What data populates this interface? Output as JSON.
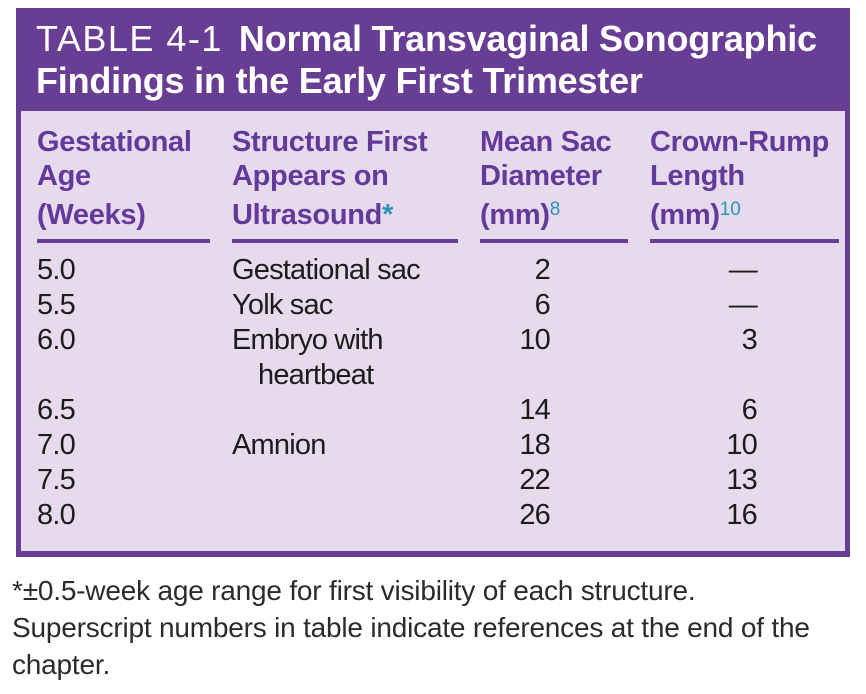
{
  "theme": {
    "header_bg": "#683d94",
    "panel_bg": "#e6daec",
    "heading_text": "#63399a",
    "title_text": "#ffffff",
    "superscript": "#2a93b8",
    "body_text": "#1c1c1c",
    "border": "#683d94",
    "page_bg": "#ffffff",
    "footnote_text": "#2b2b2b"
  },
  "title": {
    "label": "TABLE 4-1",
    "text": "Normal Transvaginal Sonographic Findings in the Early First Trimester"
  },
  "table": {
    "columns": [
      {
        "line1": "Gestational",
        "line2": "Age",
        "line3": "(Weeks)",
        "star": "",
        "sup": ""
      },
      {
        "line1": "Structure First",
        "line2": "Appears on",
        "line3": "Ultrasound",
        "star": "*",
        "sup": ""
      },
      {
        "line1": "Mean Sac",
        "line2": "Diameter",
        "line3": "(mm)",
        "star": "",
        "sup": "8"
      },
      {
        "line1": "Crown-Rump",
        "line2": "Length",
        "line3": "(mm)",
        "star": "",
        "sup": "10"
      }
    ],
    "rows": [
      {
        "age": "5.0",
        "structure": "Gestational sac",
        "structure2": "",
        "mean_sac_diameter": "2",
        "crown_rump_length": "—"
      },
      {
        "age": "5.5",
        "structure": "Yolk sac",
        "structure2": "",
        "mean_sac_diameter": "6",
        "crown_rump_length": "—"
      },
      {
        "age": "6.0",
        "structure": "Embryo with",
        "structure2": "heartbeat",
        "mean_sac_diameter": "10",
        "crown_rump_length": "3"
      },
      {
        "age": "6.5",
        "structure": "",
        "structure2": "",
        "mean_sac_diameter": "14",
        "crown_rump_length": "6"
      },
      {
        "age": "7.0",
        "structure": "Amnion",
        "structure2": "",
        "mean_sac_diameter": "18",
        "crown_rump_length": "10"
      },
      {
        "age": "7.5",
        "structure": "",
        "structure2": "",
        "mean_sac_diameter": "22",
        "crown_rump_length": "13"
      },
      {
        "age": "8.0",
        "structure": "",
        "structure2": "",
        "mean_sac_diameter": "26",
        "crown_rump_length": "16"
      }
    ]
  },
  "footnote": {
    "star_note": "*±0.5-week age range for first visibility of each structure.",
    "ref_note": "Superscript numbers in table indicate references at the end of the chapter."
  }
}
